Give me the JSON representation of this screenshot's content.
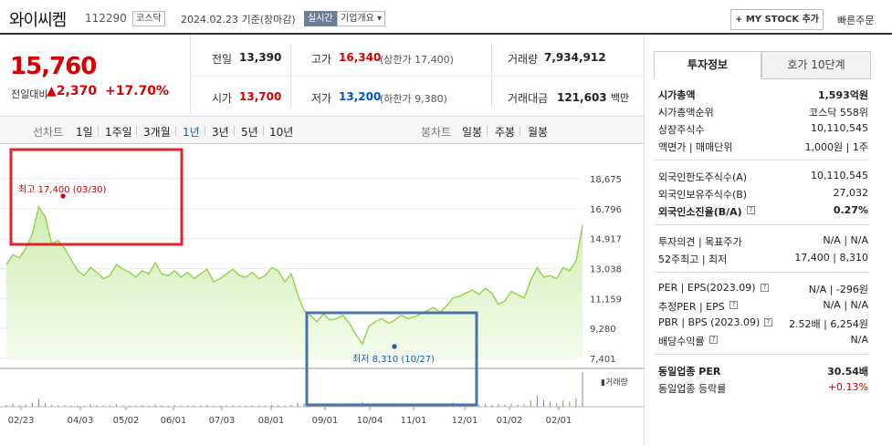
{
  "header": {
    "company_name": "와이씨켐",
    "code": "112290",
    "market": "코스닥",
    "date": "2024.02.23",
    "basis": "기준(장마감)",
    "realtime_label": "실시간",
    "company_info_label": "기업개요",
    "mystock_label": "+ MY STOCK 추가",
    "quick_order_label": "빠른주문"
  },
  "summary": {
    "price": "15,760",
    "change_label": "전일대비",
    "change_value": "2,370",
    "change_arrow": "▲",
    "change_pct": "+17.70%",
    "prev_label": "전일",
    "prev_value": "13,390",
    "high_label": "고가",
    "high_value": "16,340",
    "upper_limit": "(상한가 17,400)",
    "volume_label": "거래량",
    "volume_value": "7,934,912",
    "open_label": "시가",
    "open_value": "13,700",
    "low_label": "저가",
    "low_value": "13,200",
    "lower_limit": "(하한가 9,380)",
    "amount_label": "거래대금",
    "amount_value": "121,603",
    "amount_unit": "백만"
  },
  "period_bar": {
    "line_label": "선차트",
    "periods": [
      "1일",
      "1주일",
      "3개월",
      "1년",
      "3년",
      "5년",
      "10년"
    ],
    "selected": "1년",
    "candle_label": "봉차트",
    "candles": [
      "일봉",
      "주봉",
      "월봉"
    ]
  },
  "chart_data": {
    "type": "area",
    "x_ticks": [
      "02/23",
      "04/03",
      "05/02",
      "06/01",
      "07/03",
      "08/01",
      "09/01",
      "10/04",
      "11/01",
      "12/01",
      "01/02",
      "02/01"
    ],
    "y_ticks": [
      "18,675",
      "16,796",
      "14,917",
      "13,038",
      "11,159",
      "9,280",
      "7,401"
    ],
    "ylim": [
      7401,
      18675
    ],
    "series": [
      {
        "values": [
          13300,
          13900,
          13700,
          14300,
          15200,
          16900,
          16300,
          14600,
          14800,
          14300,
          13600,
          12900,
          12600,
          13100,
          12800,
          12400,
          12600,
          13300,
          13000,
          12800,
          12500,
          12900,
          12700,
          13400,
          12700,
          12600,
          12900,
          12500,
          12800,
          12400,
          12700,
          13000,
          12200,
          12400,
          12700,
          13000,
          12600,
          12500,
          12800,
          12400,
          12600,
          13100,
          12900,
          12200,
          12700,
          11400,
          10400,
          10100,
          9700,
          10200,
          9800,
          9900,
          10100,
          9600,
          8900,
          8310,
          9400,
          9700,
          9900,
          9600,
          9800,
          10100,
          9900,
          10000,
          10200,
          10400,
          10600,
          10300,
          10700,
          11200,
          11300,
          11500,
          11700,
          11400,
          11800,
          11500,
          10800,
          11000,
          11600,
          11400,
          11200,
          12300,
          13100,
          12500,
          12600,
          12400,
          13100,
          12900,
          13500,
          15760
        ]
      }
    ],
    "volume": [
      0.05,
      0.08,
      0.04,
      0.06,
      0.12,
      0.22,
      0.1,
      0.05,
      0.04,
      0.05,
      0.03,
      0.04,
      0.03,
      0.07,
      0.04,
      0.03,
      0.04,
      0.08,
      0.04,
      0.03,
      0.03,
      0.05,
      0.03,
      0.06,
      0.04,
      0.03,
      0.05,
      0.03,
      0.04,
      0.03,
      0.03,
      0.05,
      0.03,
      0.03,
      0.04,
      0.04,
      0.03,
      0.03,
      0.04,
      0.03,
      0.03,
      0.05,
      0.04,
      0.04,
      0.05,
      0.12,
      0.1,
      0.06,
      0.05,
      0.07,
      0.04,
      0.04,
      0.05,
      0.06,
      0.1,
      0.14,
      0.09,
      0.05,
      0.05,
      0.04,
      0.04,
      0.05,
      0.04,
      0.04,
      0.05,
      0.05,
      0.06,
      0.04,
      0.06,
      0.12,
      0.08,
      0.07,
      0.09,
      0.06,
      0.07,
      0.05,
      0.07,
      0.06,
      0.08,
      0.06,
      0.06,
      0.18,
      0.32,
      0.2,
      0.14,
      0.1,
      0.18,
      0.14,
      0.25,
      1.0
    ],
    "annotations": {
      "high": "최고 17,400 (03/30)",
      "low": "최저 8,310 (10/27)"
    },
    "volume_label": "거래량",
    "line_color": "#8fd44a",
    "fill_color": "#cfeeb0"
  },
  "right_panel": {
    "tab_invest": "투자정보",
    "tab_orderbook": "호가 10단계",
    "rows": [
      {
        "k": "시가총액",
        "v": "1,593억원",
        "bold": true
      },
      {
        "k": "시가총액순위",
        "v": "코스닥 558위"
      },
      {
        "k": "상장주식수",
        "v": "10,110,545"
      },
      {
        "k": "액면가 | 매매단위",
        "v": "1,000원 | 1주"
      },
      {
        "k": "외국인한도주식수(A)",
        "v": "10,110,545"
      },
      {
        "k": "외국인보유주식수(B)",
        "v": "27,032"
      },
      {
        "k": "외국인소진율(B/A)",
        "v": "0.27%",
        "bold": true
      },
      {
        "k": "투자의견 | 목표주가",
        "v": "N/A | N/A"
      },
      {
        "k": "52주최고 | 최저",
        "v": "17,400 | 8,310"
      },
      {
        "k": "PER | EPS(2023.09)",
        "v": "N/A | -296원"
      },
      {
        "k": "추정PER | EPS",
        "v": "N/A | N/A"
      },
      {
        "k": "PBR | BPS (2023.09)",
        "v": "2.52배 | 6,254원"
      },
      {
        "k": "배당수익률",
        "v": "N/A"
      },
      {
        "k": "동일업종 PER",
        "v": "30.54배",
        "bold": true
      },
      {
        "k": "동일업종 등락률",
        "v": "+0.13%",
        "red": true
      }
    ]
  }
}
